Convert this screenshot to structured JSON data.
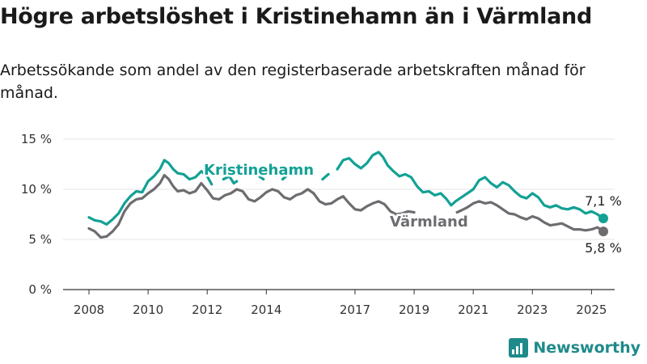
{
  "header": {
    "title": "Högre arbetslöshet i Kristinehamn än i Värmland",
    "subtitle": "Arbetssökande som andel av den registerbaserade arbetskraften månad för månad."
  },
  "brand": {
    "name": "Newsworthy",
    "logo_icon": "bar-chart-logo-icon"
  },
  "colors": {
    "kristinehamn": "#13a195",
    "varmland": "#6f6c71",
    "grid": "#e4e4e4",
    "axis": "#333333"
  },
  "chart_data": {
    "type": "line",
    "y_ticks": [
      {
        "value": 0,
        "label": "0 %"
      },
      {
        "value": 5,
        "label": "5 %"
      },
      {
        "value": 10,
        "label": "10 %"
      },
      {
        "value": 15,
        "label": "15 %"
      }
    ],
    "x_ticks": [
      {
        "value": 2008,
        "label": "2008"
      },
      {
        "value": 2010,
        "label": "2010"
      },
      {
        "value": 2012,
        "label": "2012"
      },
      {
        "value": 2014,
        "label": "2014"
      },
      {
        "value": 2017,
        "label": "2017"
      },
      {
        "value": 2019,
        "label": "2019"
      },
      {
        "value": 2021,
        "label": "2021"
      },
      {
        "value": 2023,
        "label": "2023"
      },
      {
        "value": 2025,
        "label": "2025"
      }
    ],
    "xlim": [
      2008,
      2025.4
    ],
    "ylim": [
      0,
      15
    ],
    "grid": true,
    "series": [
      {
        "name": "Kristinehamn",
        "color": "#13a195",
        "last_label": "7,1 %",
        "segments": [
          [
            [
              2008.0,
              7.2
            ],
            [
              2008.2,
              6.9
            ],
            [
              2008.4,
              6.8
            ],
            [
              2008.6,
              6.5
            ],
            [
              2008.8,
              7.0
            ],
            [
              2009.0,
              7.6
            ],
            [
              2009.2,
              8.6
            ],
            [
              2009.4,
              9.3
            ],
            [
              2009.6,
              9.8
            ],
            [
              2009.8,
              9.7
            ],
            [
              2010.0,
              10.8
            ],
            [
              2010.2,
              11.3
            ],
            [
              2010.4,
              12.0
            ],
            [
              2010.55,
              12.9
            ],
            [
              2010.7,
              12.6
            ],
            [
              2010.85,
              12.0
            ],
            [
              2011.0,
              11.6
            ],
            [
              2011.2,
              11.5
            ],
            [
              2011.4,
              11.0
            ],
            [
              2011.6,
              11.2
            ],
            [
              2011.8,
              11.8
            ],
            [
              2012.0,
              11.3
            ],
            [
              2012.15,
              10.5
            ]
          ],
          [
            [
              2012.55,
              11.0
            ],
            [
              2012.75,
              11.3
            ],
            [
              2012.9,
              10.6
            ],
            [
              2013.0,
              10.8
            ]
          ],
          [
            [
              2013.7,
              11.4
            ],
            [
              2013.9,
              11.0
            ]
          ],
          [
            [
              2014.55,
              11.0
            ],
            [
              2014.75,
              11.5
            ]
          ],
          [
            [
              2015.9,
              11.0
            ],
            [
              2016.1,
              11.5
            ]
          ],
          [
            [
              2016.4,
              12.0
            ],
            [
              2016.6,
              12.9
            ],
            [
              2016.8,
              13.1
            ],
            [
              2017.0,
              12.5
            ],
            [
              2017.2,
              12.1
            ],
            [
              2017.4,
              12.6
            ],
            [
              2017.6,
              13.4
            ],
            [
              2017.8,
              13.7
            ],
            [
              2017.95,
              13.2
            ],
            [
              2018.1,
              12.4
            ],
            [
              2018.3,
              11.8
            ],
            [
              2018.5,
              11.3
            ],
            [
              2018.7,
              11.5
            ],
            [
              2018.9,
              11.2
            ],
            [
              2019.1,
              10.3
            ],
            [
              2019.3,
              9.7
            ],
            [
              2019.5,
              9.8
            ],
            [
              2019.7,
              9.4
            ],
            [
              2019.9,
              9.6
            ],
            [
              2020.1,
              9.0
            ],
            [
              2020.25,
              8.4
            ],
            [
              2020.4,
              8.8
            ],
            [
              2020.6,
              9.2
            ],
            [
              2020.8,
              9.6
            ],
            [
              2021.0,
              10.0
            ],
            [
              2021.2,
              10.9
            ],
            [
              2021.4,
              11.2
            ],
            [
              2021.6,
              10.6
            ],
            [
              2021.8,
              10.2
            ],
            [
              2022.0,
              10.7
            ],
            [
              2022.2,
              10.4
            ],
            [
              2022.4,
              9.8
            ],
            [
              2022.6,
              9.3
            ],
            [
              2022.8,
              9.1
            ],
            [
              2023.0,
              9.6
            ],
            [
              2023.2,
              9.2
            ],
            [
              2023.4,
              8.4
            ],
            [
              2023.6,
              8.2
            ],
            [
              2023.8,
              8.4
            ],
            [
              2024.0,
              8.1
            ],
            [
              2024.2,
              8.0
            ],
            [
              2024.4,
              8.2
            ],
            [
              2024.6,
              8.0
            ],
            [
              2024.8,
              7.6
            ],
            [
              2025.0,
              7.8
            ],
            [
              2025.2,
              7.5
            ],
            [
              2025.4,
              7.1
            ]
          ]
        ]
      },
      {
        "name": "Värmland",
        "color": "#6f6c71",
        "last_label": "5,8 %",
        "segments": [
          [
            [
              2008.0,
              6.1
            ],
            [
              2008.2,
              5.8
            ],
            [
              2008.4,
              5.2
            ],
            [
              2008.6,
              5.3
            ],
            [
              2008.8,
              5.8
            ],
            [
              2009.0,
              6.5
            ],
            [
              2009.2,
              7.8
            ],
            [
              2009.4,
              8.6
            ],
            [
              2009.6,
              9.0
            ],
            [
              2009.8,
              9.1
            ],
            [
              2010.0,
              9.6
            ],
            [
              2010.2,
              10.0
            ],
            [
              2010.4,
              10.6
            ],
            [
              2010.55,
              11.4
            ],
            [
              2010.7,
              11.0
            ],
            [
              2010.85,
              10.3
            ],
            [
              2011.0,
              9.8
            ],
            [
              2011.2,
              9.9
            ],
            [
              2011.4,
              9.6
            ],
            [
              2011.6,
              9.8
            ],
            [
              2011.8,
              10.6
            ],
            [
              2012.0,
              9.9
            ],
            [
              2012.2,
              9.1
            ],
            [
              2012.4,
              9.0
            ],
            [
              2012.6,
              9.4
            ],
            [
              2012.8,
              9.6
            ],
            [
              2013.0,
              10.0
            ],
            [
              2013.2,
              9.8
            ],
            [
              2013.4,
              9.0
            ],
            [
              2013.6,
              8.8
            ],
            [
              2013.8,
              9.2
            ],
            [
              2014.0,
              9.7
            ],
            [
              2014.2,
              10.0
            ],
            [
              2014.4,
              9.8
            ],
            [
              2014.6,
              9.2
            ],
            [
              2014.8,
              9.0
            ],
            [
              2015.0,
              9.4
            ],
            [
              2015.2,
              9.6
            ],
            [
              2015.4,
              10.0
            ],
            [
              2015.6,
              9.6
            ],
            [
              2015.8,
              8.8
            ],
            [
              2016.0,
              8.5
            ],
            [
              2016.2,
              8.6
            ],
            [
              2016.4,
              9.0
            ],
            [
              2016.6,
              9.3
            ],
            [
              2016.8,
              8.6
            ],
            [
              2017.0,
              8.0
            ],
            [
              2017.2,
              7.9
            ],
            [
              2017.4,
              8.3
            ],
            [
              2017.6,
              8.6
            ],
            [
              2017.8,
              8.8
            ],
            [
              2018.0,
              8.5
            ],
            [
              2018.2,
              7.8
            ],
            [
              2018.4,
              7.5
            ],
            [
              2018.6,
              7.6
            ],
            [
              2018.8,
              7.8
            ],
            [
              2019.0,
              7.7
            ]
          ],
          [
            [
              2020.45,
              7.7
            ],
            [
              2020.6,
              7.9
            ],
            [
              2020.8,
              8.2
            ],
            [
              2021.0,
              8.6
            ],
            [
              2021.2,
              8.8
            ],
            [
              2021.4,
              8.6
            ],
            [
              2021.6,
              8.7
            ],
            [
              2021.8,
              8.4
            ],
            [
              2022.0,
              8.0
            ],
            [
              2022.2,
              7.6
            ],
            [
              2022.4,
              7.5
            ],
            [
              2022.6,
              7.2
            ],
            [
              2022.8,
              7.0
            ],
            [
              2023.0,
              7.3
            ],
            [
              2023.2,
              7.1
            ],
            [
              2023.4,
              6.7
            ],
            [
              2023.6,
              6.4
            ],
            [
              2023.8,
              6.5
            ],
            [
              2024.0,
              6.6
            ],
            [
              2024.2,
              6.3
            ],
            [
              2024.4,
              6.0
            ],
            [
              2024.6,
              6.0
            ],
            [
              2024.8,
              5.9
            ],
            [
              2025.0,
              6.0
            ],
            [
              2025.2,
              6.2
            ],
            [
              2025.4,
              5.8
            ]
          ]
        ]
      }
    ]
  }
}
